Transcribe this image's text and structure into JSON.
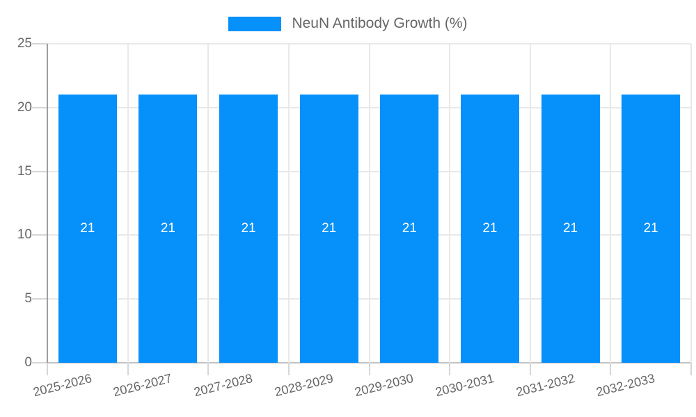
{
  "chart_data": {
    "type": "bar",
    "title": "NeuN Antibody Growth (%)",
    "legend": {
      "position": "top",
      "label": "NeuN Antibody Growth (%)"
    },
    "categories": [
      "2025-2026",
      "2026-2027",
      "2027-2028",
      "2028-2029",
      "2029-2030",
      "2030-2031",
      "2031-2032",
      "2032-2033"
    ],
    "series": [
      {
        "name": "NeuN Antibody Growth (%)",
        "values": [
          21,
          21,
          21,
          21,
          21,
          21,
          21,
          21
        ]
      }
    ],
    "bar_value_labels": [
      "21",
      "21",
      "21",
      "21",
      "21",
      "21",
      "21",
      "21"
    ],
    "xlabel": "",
    "ylabel": "",
    "ylim": [
      0,
      25
    ],
    "yticks": [
      0,
      5,
      10,
      15,
      20,
      25
    ],
    "ytick_labels": [
      "0",
      "5",
      "10",
      "15",
      "20",
      "25"
    ],
    "grid": true,
    "colors": {
      "bar": "#0690fa",
      "grid": "#e9e9e9",
      "axis_line": "#9e9e9e",
      "zero_line": "#c2c2c2",
      "tick": "#d6d6d6",
      "text": "#666666",
      "bar_label": "#ffffff"
    }
  }
}
